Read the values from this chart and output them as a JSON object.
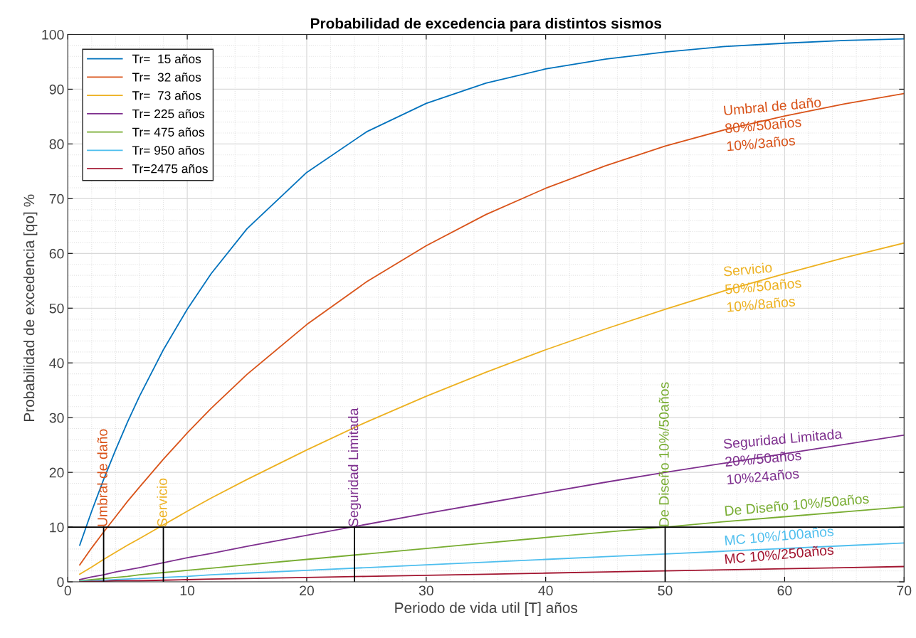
{
  "chart_data": {
    "type": "line",
    "title": "Probabilidad de excedencia para distintos sismos",
    "xlabel": "Periodo de vida util [T] años",
    "ylabel": "Probabilidad de excedencia [qo] %",
    "x": [
      1,
      2,
      3,
      4,
      5,
      6,
      8,
      10,
      12,
      15,
      20,
      25,
      30,
      35,
      40,
      45,
      50,
      55,
      60,
      65,
      70
    ],
    "xlim": [
      0,
      70
    ],
    "xticks": [
      0,
      10,
      20,
      30,
      40,
      50,
      60,
      70
    ],
    "ylim": [
      0,
      100
    ],
    "yticks": [
      0,
      10,
      20,
      30,
      40,
      50,
      60,
      70,
      80,
      90,
      100
    ],
    "grid": true,
    "legend": "top left",
    "series": [
      {
        "name": "Tr=  15 años",
        "color": "#0072bd",
        "values": [
          6.7,
          12.9,
          18.7,
          24.1,
          29.2,
          33.9,
          42.4,
          49.8,
          56.3,
          64.5,
          74.8,
          82.2,
          87.4,
          91.1,
          93.7,
          95.5,
          96.8,
          97.8,
          98.4,
          98.9,
          99.2
        ]
      },
      {
        "name": "Tr=  32 años",
        "color": "#d95319",
        "values": [
          3.1,
          6.2,
          9.1,
          11.9,
          14.7,
          17.3,
          22.4,
          27.2,
          31.7,
          37.9,
          47.0,
          54.8,
          61.4,
          67.1,
          71.9,
          76.0,
          79.6,
          82.6,
          85.1,
          87.3,
          89.2
        ]
      },
      {
        "name": "Tr=  73 años",
        "color": "#edb120",
        "values": [
          1.4,
          2.7,
          4.1,
          5.4,
          6.7,
          7.9,
          10.4,
          12.9,
          15.3,
          18.7,
          24.1,
          29.2,
          33.9,
          38.3,
          42.4,
          46.2,
          49.8,
          53.2,
          56.3,
          59.2,
          61.9
        ]
      },
      {
        "name": "Tr= 225 años",
        "color": "#7e2f8e",
        "values": [
          0.4,
          0.9,
          1.3,
          1.8,
          2.2,
          2.6,
          3.5,
          4.4,
          5.2,
          6.5,
          8.5,
          10.5,
          12.5,
          14.4,
          16.3,
          18.2,
          20.0,
          21.7,
          23.4,
          25.1,
          26.8
        ]
      },
      {
        "name": "Tr= 475 años",
        "color": "#77ac30",
        "values": [
          0.2,
          0.4,
          0.6,
          0.8,
          1.0,
          1.3,
          1.7,
          2.1,
          2.5,
          3.1,
          4.1,
          5.1,
          6.1,
          7.1,
          8.1,
          9.1,
          10.0,
          11.0,
          11.9,
          12.8,
          13.7
        ]
      },
      {
        "name": "Tr= 950 años",
        "color": "#4dbeee",
        "values": [
          0.1,
          0.2,
          0.3,
          0.4,
          0.5,
          0.6,
          0.8,
          1.0,
          1.3,
          1.6,
          2.1,
          2.6,
          3.1,
          3.6,
          4.1,
          4.6,
          5.1,
          5.6,
          6.1,
          6.6,
          7.1
        ]
      },
      {
        "name": "Tr=2475 años",
        "color": "#a2142f",
        "values": [
          0.0,
          0.1,
          0.1,
          0.2,
          0.2,
          0.2,
          0.3,
          0.4,
          0.5,
          0.6,
          0.8,
          1.0,
          1.2,
          1.4,
          1.6,
          1.8,
          2.0,
          2.2,
          2.4,
          2.6,
          2.8
        ]
      },
      {
        "type": "line",
        "color": "#000000",
        "x": [
          3,
          3
        ],
        "values": [
          0,
          10
        ]
      },
      {
        "type": "line",
        "color": "#000000",
        "x": [
          8,
          8
        ],
        "values": [
          0,
          10
        ]
      },
      {
        "type": "line",
        "color": "#000000",
        "x": [
          24,
          24
        ],
        "values": [
          0,
          10
        ]
      },
      {
        "type": "line",
        "color": "#000000",
        "x": [
          50,
          50
        ],
        "values": [
          0,
          10
        ]
      }
    ],
    "ref_lines": [
      {
        "axis": "y",
        "value": 10,
        "color": "#000000"
      }
    ],
    "annotations": [
      {
        "text": "Umbral de daño",
        "x": 3,
        "y": 10
      },
      {
        "text": "Servicio",
        "x": 8,
        "y": 10
      },
      {
        "text": "Seguridad Limitada",
        "x": 24,
        "y": 10
      },
      {
        "text": "De Diseño 10%/50años",
        "x": 50,
        "y": 10
      },
      {
        "text": "Umbral de daño\n80%/50años\n10%/3años",
        "x": 55,
        "y": 82.6
      },
      {
        "text": "Servicio\n50%/50años\n10%/8años",
        "x": 55,
        "y": 53.2
      },
      {
        "text": "Seguridad Limitada\n20%/50años\n10%24años",
        "x": 55,
        "y": 21.7
      },
      {
        "text": "De Diseño 10%/50años",
        "x": 55,
        "y": 11.0
      },
      {
        "text": "MC 10%/100años",
        "x": 55,
        "y": 5.6
      },
      {
        "text": "MC 10%/250años",
        "x": 55,
        "y": 2.2
      }
    ]
  }
}
